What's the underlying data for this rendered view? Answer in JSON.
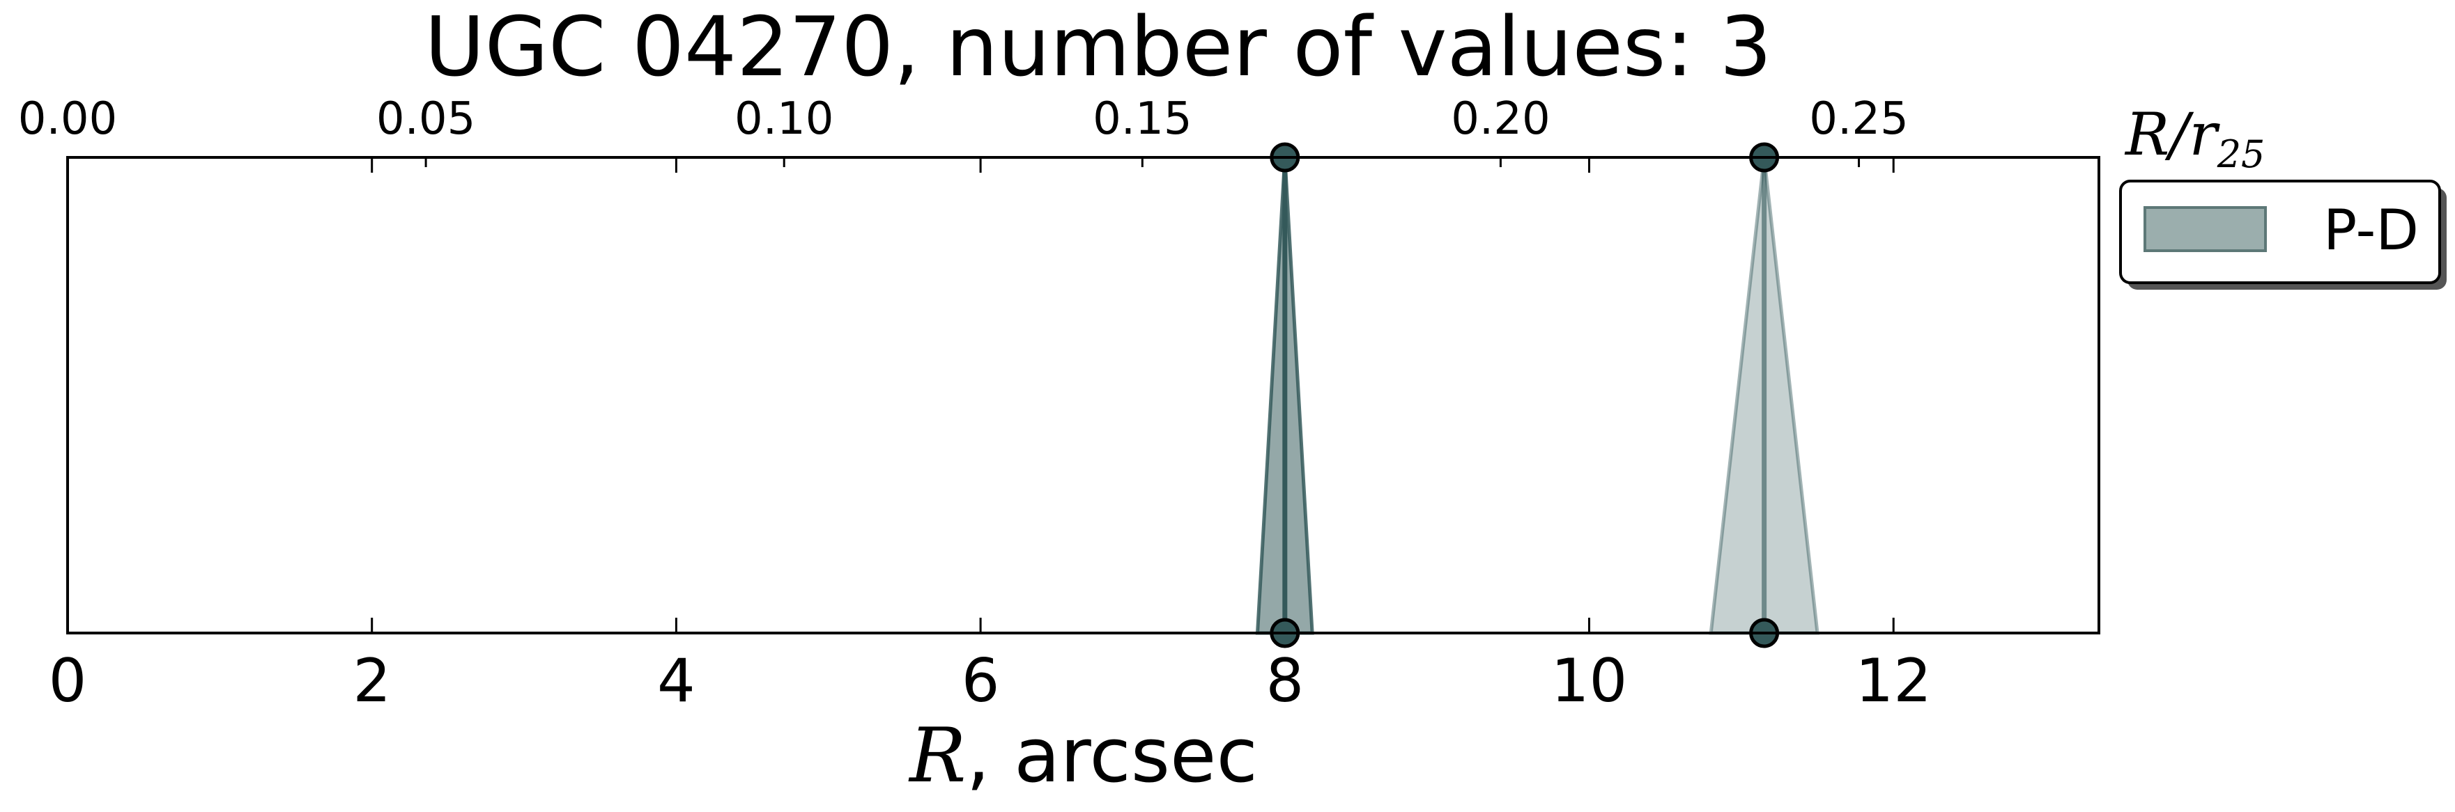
{
  "chart_data": {
    "type": "area",
    "title": "UGC 04270, number of values: 3",
    "xlabel_symbol": "R",
    "xlabel_unit": ", arcsec",
    "top_xlabel_base": "R/r",
    "top_xlabel_sub": "25",
    "xlim": [
      0,
      13.35
    ],
    "x_ticks": [
      0,
      2,
      4,
      6,
      8,
      10,
      12
    ],
    "x_tick_labels": [
      "0",
      "2",
      "4",
      "6",
      "8",
      "10",
      "12"
    ],
    "top_xlim": [
      0,
      0.2835
    ],
    "top_ticks": [
      0.0,
      0.05,
      0.1,
      0.15,
      0.2,
      0.25
    ],
    "top_tick_labels": [
      "0.00",
      "0.05",
      "0.10",
      "0.15",
      "0.20",
      "0.25"
    ],
    "ylim": [
      0,
      1
    ],
    "grid": false,
    "legend_placement": "outside right, top",
    "series": [
      {
        "name": "P-D",
        "color": "#34595a",
        "peaks": [
          {
            "x": 8.0,
            "half_width": 0.18,
            "fill_opacity": 0.85
          },
          {
            "x": 11.15,
            "half_width": 0.35,
            "fill_opacity": 0.45
          }
        ]
      }
    ]
  },
  "legend": {
    "items": [
      {
        "label": "P-D",
        "color": "#8aa09f",
        "edge": "#5d7877"
      }
    ]
  }
}
